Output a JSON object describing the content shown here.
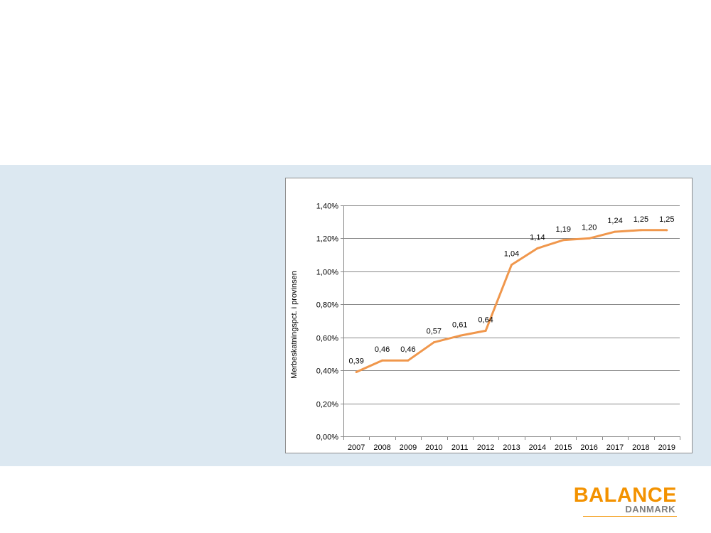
{
  "colors": {
    "band": "#dce8f1",
    "line": "#f0974c",
    "grid": "#888888",
    "text": "#000000",
    "logo_orange": "#f39200",
    "logo_grey": "#7f7f7f"
  },
  "logo": {
    "main": "BALANCE",
    "sub": "DANMARK"
  },
  "chart_data": {
    "type": "line",
    "title": "",
    "xlabel": "",
    "ylabel": "Merbeskatningspct. i provinsen",
    "categories": [
      "2007",
      "2008",
      "2009",
      "2010",
      "2011",
      "2012",
      "2013",
      "2014",
      "2015",
      "2016",
      "2017",
      "2018",
      "2019"
    ],
    "series": [
      {
        "values": [
          0.39,
          0.46,
          0.46,
          0.57,
          0.61,
          0.64,
          1.04,
          1.14,
          1.19,
          1.2,
          1.24,
          1.25,
          1.25
        ],
        "data_labels": [
          "0,39",
          "0,46",
          "0,46",
          "0,57",
          "0,61",
          "0,64",
          "1,04",
          "1,14",
          "1,19",
          "1,20",
          "1,24",
          "1,25",
          "1,25"
        ]
      }
    ],
    "ylim": [
      0,
      1.4
    ],
    "y_ticks": [
      0,
      0.2,
      0.4,
      0.6,
      0.8,
      1.0,
      1.2,
      1.4
    ],
    "y_tick_labels": [
      "0,00%",
      "0,20%",
      "0,40%",
      "0,60%",
      "0,80%",
      "1,00%",
      "1,20%",
      "1,40%"
    ],
    "grid": true,
    "legend": "none"
  }
}
